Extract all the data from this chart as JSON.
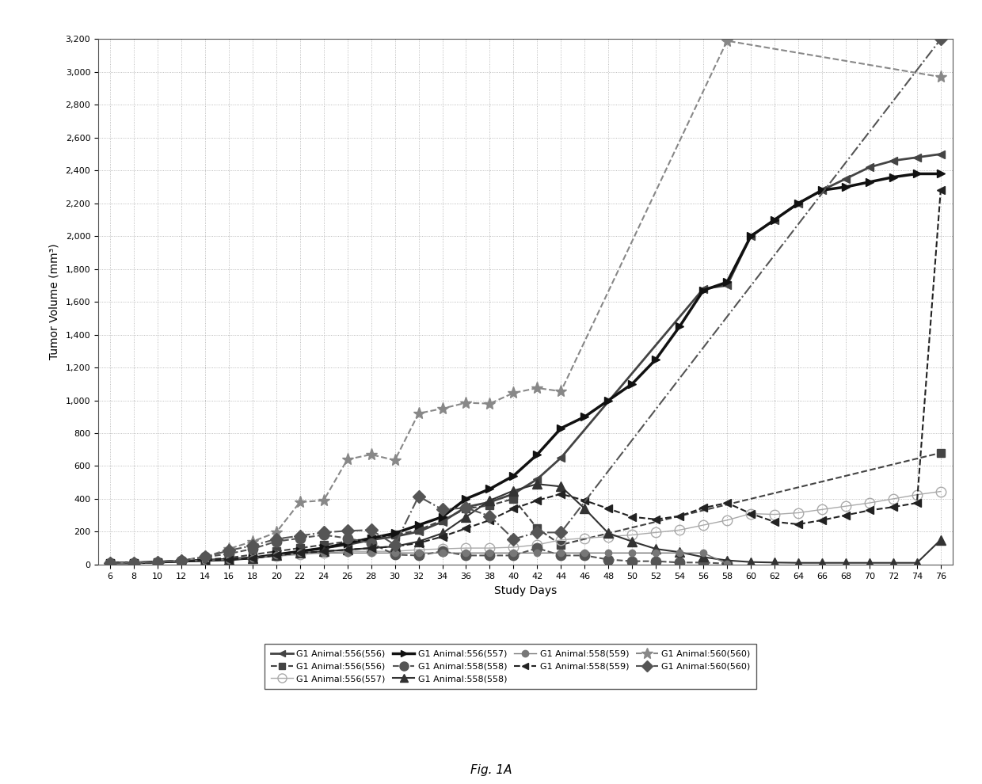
{
  "xlabel": "Study Days",
  "ylabel": "Tumor Volume (mm³)",
  "figcaption": "Fig. 1A",
  "ylim": [
    0,
    3200
  ],
  "ytick_vals": [
    0,
    200,
    400,
    600,
    800,
    1000,
    1200,
    1400,
    1600,
    1800,
    2000,
    2200,
    2400,
    2600,
    2800,
    3000,
    3200
  ],
  "xtick_vals": [
    6,
    8,
    10,
    12,
    14,
    16,
    18,
    20,
    22,
    24,
    26,
    28,
    30,
    32,
    34,
    36,
    38,
    40,
    42,
    44,
    46,
    48,
    50,
    52,
    54,
    56,
    58,
    60,
    62,
    64,
    66,
    68,
    70,
    72,
    74,
    76
  ],
  "xlim": [
    5,
    77
  ],
  "series": [
    {
      "label": "G1 Animal:556(556)",
      "linestyle": "-",
      "marker": "<",
      "color": "#444444",
      "lw": 2.0,
      "ms": 7,
      "fillstyle": "full",
      "x": [
        6,
        8,
        10,
        12,
        14,
        16,
        18,
        20,
        22,
        24,
        26,
        28,
        30,
        32,
        34,
        36,
        38,
        40,
        42,
        44,
        56,
        58,
        60,
        62,
        64,
        66,
        68,
        70,
        72,
        74,
        76
      ],
      "y": [
        10,
        10,
        15,
        20,
        25,
        30,
        40,
        60,
        80,
        100,
        120,
        150,
        170,
        200,
        260,
        350,
        380,
        430,
        520,
        650,
        1680,
        1700,
        2000,
        2100,
        2200,
        2280,
        2350,
        2420,
        2460,
        2480,
        2500
      ]
    },
    {
      "label": "G1 Animal:556(556)",
      "linestyle": "--",
      "marker": "s",
      "color": "#444444",
      "lw": 1.5,
      "ms": 7,
      "fillstyle": "full",
      "x": [
        6,
        8,
        10,
        12,
        14,
        16,
        18,
        20,
        22,
        24,
        26,
        28,
        30,
        32,
        34,
        36,
        38,
        40,
        42,
        44,
        76
      ],
      "y": [
        10,
        10,
        15,
        20,
        30,
        40,
        60,
        80,
        100,
        120,
        140,
        160,
        180,
        210,
        270,
        340,
        360,
        400,
        220,
        120,
        680
      ]
    },
    {
      "label": "G1 Animal:556(557)",
      "linestyle": "-",
      "marker": "o",
      "color": "#aaaaaa",
      "lw": 1.0,
      "ms": 9,
      "fillstyle": "none",
      "x": [
        6,
        8,
        10,
        12,
        14,
        16,
        18,
        20,
        22,
        24,
        26,
        28,
        30,
        32,
        34,
        36,
        38,
        40,
        42,
        44,
        46,
        48,
        50,
        52,
        54,
        56,
        58,
        60,
        62,
        64,
        66,
        68,
        70,
        72,
        74,
        76
      ],
      "y": [
        10,
        10,
        15,
        20,
        25,
        30,
        40,
        50,
        60,
        70,
        80,
        80,
        80,
        90,
        95,
        100,
        100,
        105,
        120,
        150,
        160,
        170,
        180,
        195,
        210,
        240,
        270,
        310,
        305,
        315,
        335,
        355,
        375,
        400,
        425,
        445
      ]
    },
    {
      "label": "G1 Animal:556(557)",
      "linestyle": "-",
      "marker": ">",
      "color": "#111111",
      "lw": 2.5,
      "ms": 7,
      "fillstyle": "full",
      "x": [
        6,
        8,
        10,
        12,
        14,
        16,
        18,
        20,
        22,
        24,
        26,
        28,
        30,
        32,
        34,
        36,
        38,
        40,
        42,
        44,
        46,
        48,
        50,
        52,
        54,
        56,
        58,
        60,
        62,
        64,
        66,
        68,
        70,
        72,
        74,
        76
      ],
      "y": [
        10,
        10,
        15,
        20,
        25,
        30,
        40,
        60,
        80,
        100,
        130,
        160,
        190,
        240,
        290,
        400,
        460,
        540,
        670,
        830,
        900,
        1000,
        1100,
        1250,
        1450,
        1670,
        1720,
        2000,
        2100,
        2200,
        2280,
        2300,
        2330,
        2360,
        2380,
        2380
      ]
    },
    {
      "label": "G1 Animal:558(558)",
      "linestyle": "--",
      "marker": "o",
      "color": "#555555",
      "lw": 1.5,
      "ms": 9,
      "fillstyle": "full",
      "x": [
        6,
        8,
        10,
        12,
        14,
        16,
        18,
        20,
        22,
        24,
        26,
        28,
        30,
        32,
        34,
        36,
        38,
        40,
        42,
        44,
        46,
        48,
        50,
        52,
        54,
        56,
        58
      ],
      "y": [
        10,
        10,
        15,
        25,
        45,
        65,
        95,
        140,
        160,
        180,
        160,
        130,
        60,
        55,
        80,
        55,
        55,
        55,
        100,
        55,
        55,
        30,
        20,
        20,
        12,
        12,
        5
      ]
    },
    {
      "label": "G1 Animal:558(558)",
      "linestyle": "-",
      "marker": "^",
      "color": "#333333",
      "lw": 1.5,
      "ms": 8,
      "fillstyle": "full",
      "x": [
        6,
        8,
        10,
        12,
        14,
        16,
        18,
        20,
        22,
        24,
        26,
        28,
        30,
        32,
        34,
        36,
        38,
        40,
        42,
        44,
        46,
        48,
        50,
        52,
        54,
        56,
        58,
        60,
        62,
        64,
        66,
        68,
        70,
        72,
        74,
        76
      ],
      "y": [
        10,
        10,
        15,
        20,
        25,
        30,
        40,
        55,
        70,
        80,
        90,
        100,
        110,
        140,
        190,
        290,
        390,
        450,
        490,
        475,
        340,
        190,
        140,
        95,
        75,
        45,
        25,
        15,
        12,
        10,
        10,
        10,
        10,
        10,
        10,
        150
      ]
    },
    {
      "label": "G1 Animal:558(559)",
      "linestyle": "-",
      "marker": "o",
      "color": "#777777",
      "lw": 1.0,
      "ms": 6,
      "fillstyle": "full",
      "x": [
        6,
        8,
        10,
        12,
        14,
        16,
        18,
        20,
        22,
        24,
        26,
        28,
        30,
        32,
        34,
        36,
        38,
        40,
        42,
        44,
        46,
        48,
        50,
        52,
        54,
        56,
        58
      ],
      "y": [
        10,
        10,
        15,
        20,
        25,
        30,
        40,
        55,
        70,
        70,
        70,
        70,
        70,
        70,
        70,
        70,
        70,
        70,
        70,
        70,
        70,
        70,
        70,
        70,
        70,
        70,
        5
      ]
    },
    {
      "label": "G1 Animal:558(559)",
      "linestyle": "--",
      "marker": "<",
      "color": "#222222",
      "lw": 1.5,
      "ms": 7,
      "fillstyle": "full",
      "x": [
        6,
        8,
        10,
        12,
        14,
        16,
        18,
        20,
        22,
        24,
        26,
        28,
        30,
        32,
        34,
        36,
        38,
        40,
        42,
        44,
        46,
        48,
        50,
        52,
        54,
        56,
        58,
        60,
        62,
        64,
        66,
        68,
        70,
        72,
        74,
        76
      ],
      "y": [
        10,
        10,
        15,
        20,
        25,
        30,
        40,
        55,
        70,
        80,
        90,
        100,
        110,
        130,
        170,
        220,
        270,
        340,
        390,
        430,
        390,
        340,
        290,
        275,
        295,
        345,
        375,
        310,
        260,
        245,
        270,
        300,
        330,
        350,
        375,
        2280
      ]
    },
    {
      "label": "G1 Animal:560(560)",
      "linestyle": "--",
      "marker": "*",
      "color": "#888888",
      "lw": 1.5,
      "ms": 11,
      "fillstyle": "full",
      "x": [
        6,
        8,
        10,
        12,
        14,
        16,
        18,
        20,
        22,
        24,
        26,
        28,
        30,
        32,
        34,
        36,
        38,
        40,
        42,
        44,
        58,
        76
      ],
      "y": [
        10,
        10,
        15,
        25,
        45,
        95,
        140,
        195,
        380,
        390,
        640,
        670,
        635,
        920,
        950,
        985,
        980,
        1045,
        1075,
        1055,
        3190,
        2970
      ]
    },
    {
      "label": "G1 Animal:560(560)",
      "linestyle": "-.",
      "marker": "D",
      "color": "#555555",
      "lw": 1.5,
      "ms": 8,
      "fillstyle": "full",
      "x": [
        6,
        8,
        10,
        12,
        14,
        16,
        18,
        20,
        22,
        24,
        26,
        28,
        30,
        32,
        34,
        36,
        38,
        40,
        42,
        44,
        76
      ],
      "y": [
        10,
        10,
        15,
        25,
        45,
        85,
        115,
        155,
        175,
        195,
        205,
        210,
        120,
        415,
        335,
        345,
        295,
        155,
        195,
        195,
        3200
      ]
    }
  ],
  "legend_info": [
    {
      "label": "G1 Animal:556(556)",
      "linestyle": "-",
      "marker": "<",
      "color": "#444444",
      "ms": 6,
      "lw": 2.0,
      "fillstyle": "full"
    },
    {
      "label": "G1 Animal:556(556)",
      "linestyle": "--",
      "marker": "s",
      "color": "#444444",
      "ms": 6,
      "lw": 1.5,
      "fillstyle": "full"
    },
    {
      "label": "G1 Animal:556(557)",
      "linestyle": "-",
      "marker": "o",
      "color": "#aaaaaa",
      "ms": 8,
      "lw": 1.0,
      "fillstyle": "none"
    },
    {
      "label": "G1 Animal:556(557)",
      "linestyle": "-",
      "marker": ">",
      "color": "#111111",
      "ms": 6,
      "lw": 2.5,
      "fillstyle": "full"
    },
    {
      "label": "G1 Animal:558(558)",
      "linestyle": "--",
      "marker": "o",
      "color": "#555555",
      "ms": 8,
      "lw": 1.5,
      "fillstyle": "full"
    },
    {
      "label": "G1 Animal:558(558)",
      "linestyle": "-",
      "marker": "^",
      "color": "#333333",
      "ms": 7,
      "lw": 1.5,
      "fillstyle": "full"
    },
    {
      "label": "G1 Animal:558(559)",
      "linestyle": "-",
      "marker": "o",
      "color": "#777777",
      "ms": 6,
      "lw": 1.0,
      "fillstyle": "full"
    },
    {
      "label": "G1 Animal:558(559)",
      "linestyle": "--",
      "marker": "<",
      "color": "#222222",
      "ms": 6,
      "lw": 1.5,
      "fillstyle": "full"
    },
    {
      "label": "G1 Animal:560(560)",
      "linestyle": "--",
      "marker": "*",
      "color": "#888888",
      "ms": 10,
      "lw": 1.5,
      "fillstyle": "full"
    },
    {
      "label": "G1 Animal:560(560)",
      "linestyle": "-.",
      "marker": "D",
      "color": "#555555",
      "ms": 7,
      "lw": 1.5,
      "fillstyle": "full"
    }
  ]
}
